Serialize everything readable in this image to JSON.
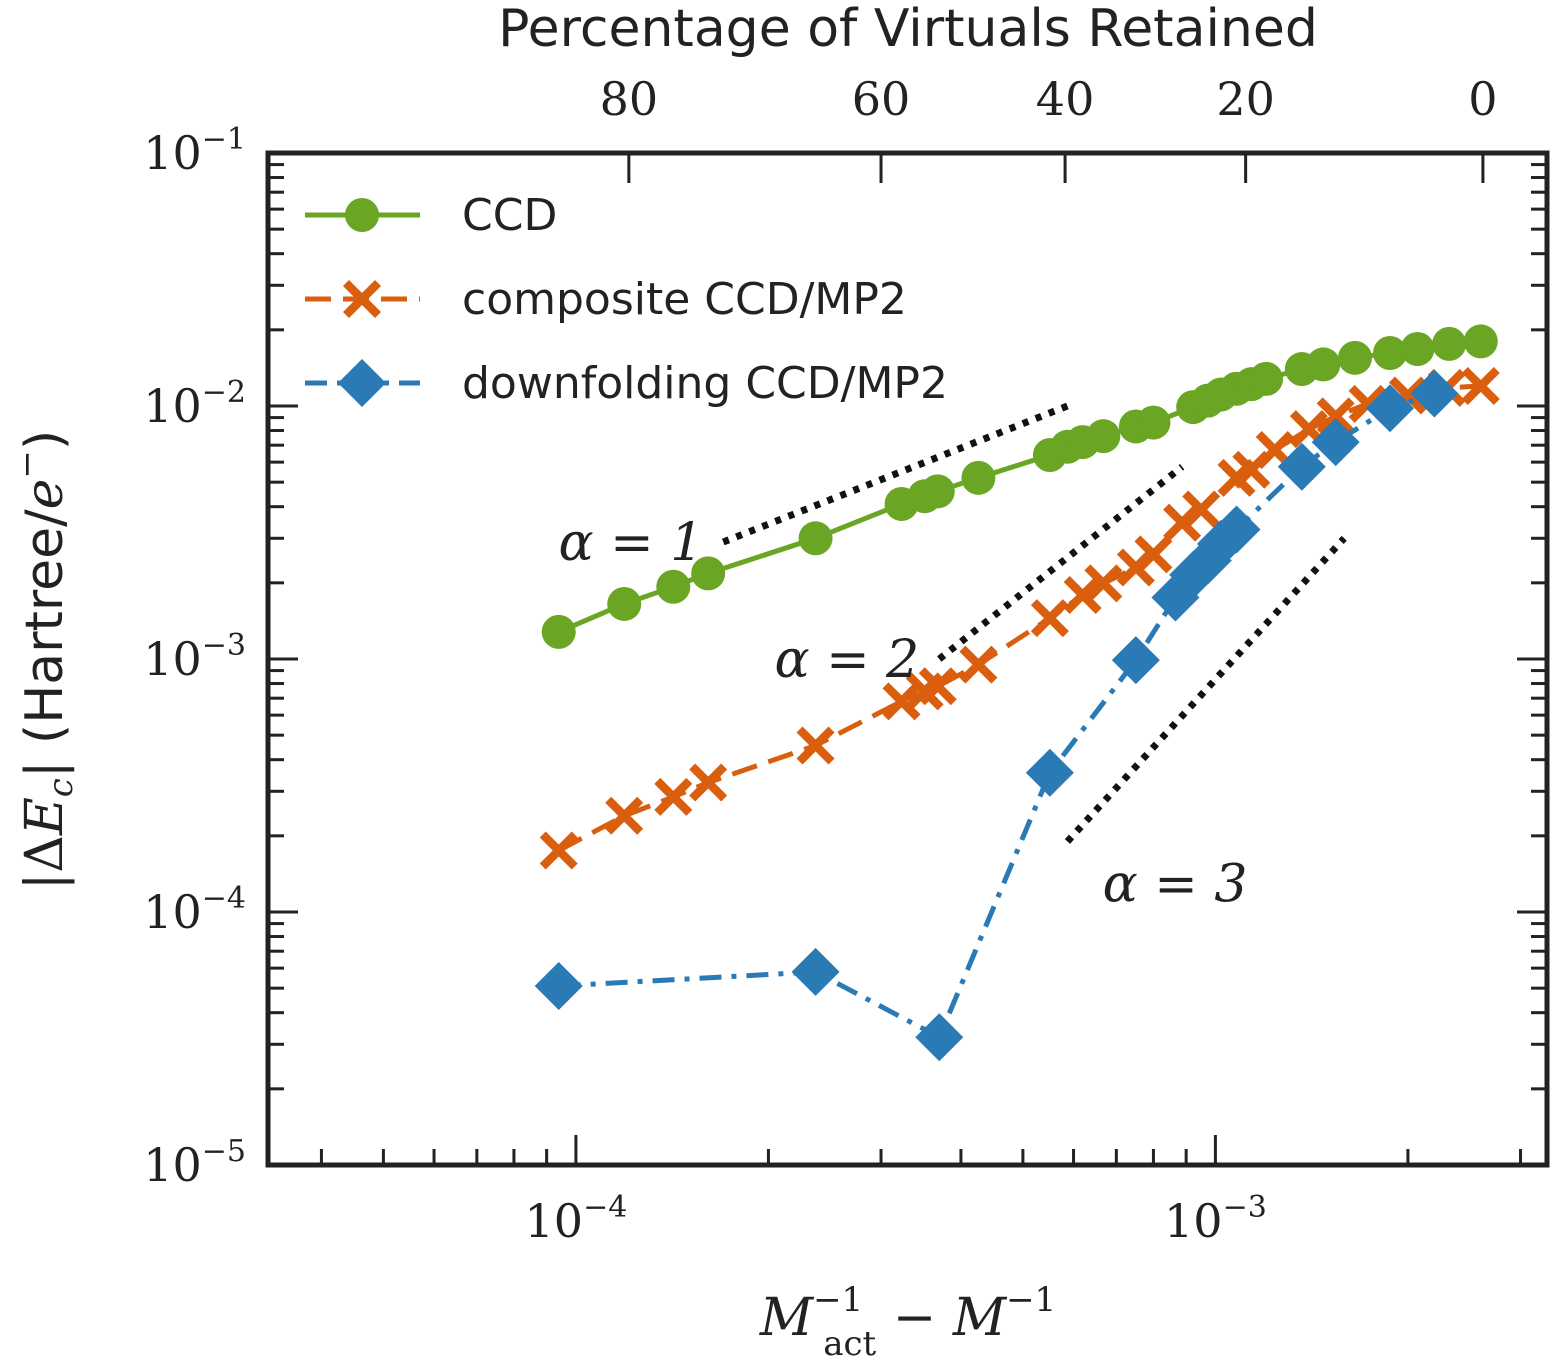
{
  "chart_data": {
    "type": "line",
    "xscale": "log",
    "yscale": "log",
    "xlim": [
      3.3e-05,
      0.0033
    ],
    "ylim": [
      1e-05,
      0.1
    ],
    "xlabel": "M_act^{-1} − M^{-1}",
    "ylabel": "|ΔE_c| (Hartree/e⁻)",
    "x_ticks": [
      {
        "base": "10",
        "exp": "−4",
        "value": 0.0001
      },
      {
        "base": "10",
        "exp": "−3",
        "value": 0.001
      }
    ],
    "y_ticks": [
      {
        "base": "10",
        "exp": "−1",
        "value": 0.1
      },
      {
        "base": "10",
        "exp": "−2",
        "value": 0.01
      },
      {
        "base": "10",
        "exp": "−3",
        "value": 0.001
      },
      {
        "base": "10",
        "exp": "−4",
        "value": 0.0001
      },
      {
        "base": "10",
        "exp": "−5",
        "value": 1e-05
      }
    ],
    "top_axis": {
      "title": "Percentage of Virtuals Retained",
      "ticks": [
        {
          "label": "80",
          "x": 0.000121
        },
        {
          "label": "60",
          "x": 0.0003
        },
        {
          "label": "40",
          "x": 0.000582
        },
        {
          "label": "20",
          "x": 0.001115
        },
        {
          "label": "0",
          "x": 0.00262
        }
      ]
    },
    "legend": {
      "position": "top-left"
    },
    "series": [
      {
        "name": "CCD",
        "color": "#6aa524",
        "linestyle": "solid",
        "marker": "circle",
        "points": [
          [
            9.4e-05,
            0.00128
          ],
          [
            0.000119,
            0.00165
          ],
          [
            0.000142,
            0.00193
          ],
          [
            0.000161,
            0.00218
          ],
          [
            0.000237,
            0.003
          ],
          [
            0.000323,
            0.0041
          ],
          [
            0.000351,
            0.0044
          ],
          [
            0.000368,
            0.0046
          ],
          [
            0.000426,
            0.0052
          ],
          [
            0.000551,
            0.0064
          ],
          [
            0.000587,
            0.0069
          ],
          [
            0.00062,
            0.0072
          ],
          [
            0.000668,
            0.0076
          ],
          [
            0.000751,
            0.0083
          ],
          [
            0.0008,
            0.0086
          ],
          [
            0.000923,
            0.0099
          ],
          [
            0.000973,
            0.0105
          ],
          [
            0.00102,
            0.0111
          ],
          [
            0.001079,
            0.0117
          ],
          [
            0.001138,
            0.0122
          ],
          [
            0.0012,
            0.0128
          ],
          [
            0.001365,
            0.014
          ],
          [
            0.001475,
            0.0146
          ],
          [
            0.001653,
            0.0155
          ],
          [
            0.001875,
            0.0162
          ],
          [
            0.00207,
            0.0168
          ],
          [
            0.00232,
            0.0176
          ],
          [
            0.0026,
            0.018
          ]
        ]
      },
      {
        "name": "composite CCD/MP2",
        "color": "#d95f0e",
        "linestyle": "dashed",
        "marker": "x",
        "points": [
          [
            9.4e-05,
            0.000175
          ],
          [
            0.000119,
            0.00024
          ],
          [
            0.000142,
            0.000285
          ],
          [
            0.000161,
            0.000325
          ],
          [
            0.000237,
            0.000455
          ],
          [
            0.000323,
            0.00068
          ],
          [
            0.000351,
            0.000745
          ],
          [
            0.000368,
            0.00078
          ],
          [
            0.000426,
            0.00095
          ],
          [
            0.000551,
            0.00145
          ],
          [
            0.00062,
            0.00179
          ],
          [
            0.000668,
            0.00199
          ],
          [
            0.000751,
            0.0023
          ],
          [
            0.0008,
            0.00259
          ],
          [
            0.000887,
            0.00346
          ],
          [
            0.00095,
            0.0039
          ],
          [
            0.001079,
            0.0052
          ],
          [
            0.001138,
            0.0056
          ],
          [
            0.001238,
            0.0067
          ],
          [
            0.0014,
            0.0081
          ],
          [
            0.001542,
            0.0091
          ],
          [
            0.00173,
            0.0102
          ],
          [
            0.002,
            0.011
          ],
          [
            0.0023,
            0.0118
          ],
          [
            0.0026,
            0.012
          ]
        ]
      },
      {
        "name": "downfolding CCD/MP2",
        "color": "#2a7ab5",
        "linestyle": "dashdot",
        "marker": "diamond",
        "points": [
          [
            9.4e-05,
            5.1e-05
          ],
          [
            0.000237,
            5.8e-05
          ],
          [
            0.00037,
            3.2e-05
          ],
          [
            0.000551,
            0.000355
          ],
          [
            0.000751,
            0.00099
          ],
          [
            0.000866,
            0.00175
          ],
          [
            0.000923,
            0.00215
          ],
          [
            0.000973,
            0.00245
          ],
          [
            0.00102,
            0.00285
          ],
          [
            0.001079,
            0.00325
          ],
          [
            0.001365,
            0.00575
          ],
          [
            0.001542,
            0.0072
          ],
          [
            0.001875,
            0.0098
          ],
          [
            0.0022,
            0.0112
          ]
        ]
      }
    ],
    "guide_lines": [
      {
        "label": "α = 1",
        "alpha": 1,
        "x": [
          0.00017,
          0.000587
        ],
        "y": [
          0.0029,
          0.01
        ]
      },
      {
        "label": "α = 2",
        "alpha": 2,
        "x": [
          0.00037,
          0.000887
        ],
        "y": [
          0.001,
          0.00575
        ]
      },
      {
        "label": "α = 3",
        "alpha": 3,
        "x": [
          0.000587,
          0.00159
        ],
        "y": [
          0.00019,
          0.003
        ]
      }
    ]
  }
}
